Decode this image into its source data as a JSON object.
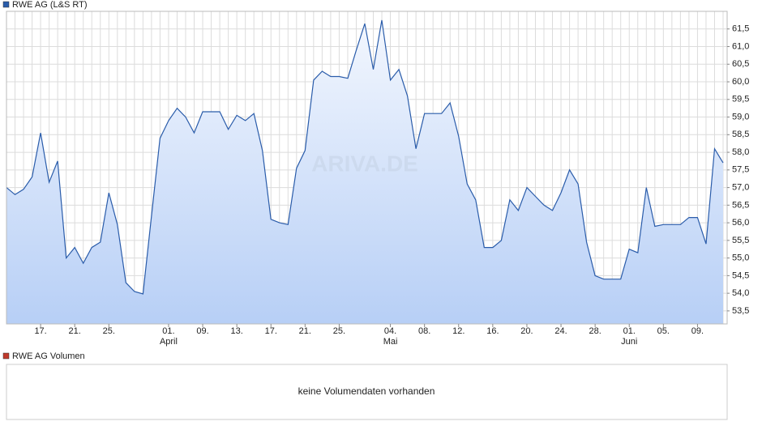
{
  "chart_data": {
    "type": "area",
    "series": [
      {
        "name": "RWE AG (L&S RT)",
        "color": "#2a5caa",
        "values": [
          57.0,
          56.8,
          56.95,
          57.3,
          58.55,
          57.15,
          57.75,
          55.0,
          55.3,
          54.85,
          55.3,
          55.45,
          56.85,
          55.95,
          54.3,
          54.05,
          53.98,
          56.2,
          58.4,
          58.9,
          59.25,
          59.0,
          58.55,
          59.15,
          59.15,
          59.15,
          58.65,
          59.05,
          58.9,
          59.1,
          58.05,
          56.1,
          56.0,
          55.95,
          57.55,
          58.05,
          60.05,
          60.3,
          60.15,
          60.15,
          60.1,
          60.9,
          61.65,
          60.35,
          61.75,
          60.05,
          60.35,
          59.6,
          58.1,
          59.1,
          59.1,
          59.1,
          59.4,
          58.45,
          57.1,
          56.65,
          55.3,
          55.3,
          55.5,
          56.65,
          56.35,
          57.0,
          56.75,
          56.5,
          56.35,
          56.85,
          57.5,
          57.1,
          55.45,
          54.5,
          54.4,
          54.4,
          54.4,
          55.25,
          55.15,
          57.0,
          55.9,
          55.95,
          55.95,
          55.95,
          56.15,
          56.15,
          55.4,
          58.1,
          57.7
        ]
      }
    ],
    "categories": [
      null,
      null,
      null,
      null,
      "17.",
      null,
      null,
      null,
      "21.",
      null,
      null,
      null,
      "25.",
      null,
      null,
      null,
      null,
      null,
      null,
      "01.",
      null,
      null,
      null,
      "09.",
      null,
      null,
      null,
      "13.",
      null,
      null,
      null,
      "17.",
      null,
      null,
      null,
      "21.",
      null,
      null,
      null,
      "25.",
      null,
      null,
      null,
      null,
      null,
      "04.",
      null,
      null,
      null,
      "08.",
      null,
      null,
      null,
      "12.",
      null,
      null,
      null,
      "16.",
      null,
      null,
      null,
      "20.",
      null,
      null,
      null,
      "24.",
      null,
      null,
      null,
      "28.",
      null,
      null,
      null,
      "01.",
      null,
      null,
      null,
      "05.",
      null,
      null,
      null,
      "09.",
      null,
      null,
      null
    ],
    "months": [
      null,
      null,
      null,
      null,
      null,
      null,
      null,
      null,
      null,
      null,
      null,
      null,
      null,
      null,
      null,
      null,
      null,
      null,
      null,
      "April",
      null,
      null,
      null,
      null,
      null,
      null,
      null,
      null,
      null,
      null,
      null,
      null,
      null,
      null,
      null,
      null,
      null,
      null,
      null,
      null,
      null,
      null,
      null,
      null,
      null,
      "Mai",
      null,
      null,
      null,
      null,
      null,
      null,
      null,
      null,
      null,
      null,
      null,
      null,
      null,
      null,
      null,
      null,
      null,
      null,
      null,
      null,
      null,
      null,
      null,
      null,
      null,
      null,
      null,
      "Juni",
      null,
      null,
      null,
      null,
      null,
      null,
      null,
      null,
      null,
      null,
      null
    ],
    "ylim": [
      53.13,
      62.0
    ],
    "yticks": [
      {
        "value": 53.5,
        "label": "53,5"
      },
      {
        "value": 54.0,
        "label": "54,0"
      },
      {
        "value": 54.5,
        "label": "54,5"
      },
      {
        "value": 55.0,
        "label": "55,0"
      },
      {
        "value": 55.5,
        "label": "55,5"
      },
      {
        "value": 56.0,
        "label": "56,0"
      },
      {
        "value": 56.5,
        "label": "56,5"
      },
      {
        "value": 57.0,
        "label": "57,0"
      },
      {
        "value": 57.5,
        "label": "57,5"
      },
      {
        "value": 58.0,
        "label": "58,0"
      },
      {
        "value": 58.5,
        "label": "58,5"
      },
      {
        "value": 59.0,
        "label": "59,0"
      },
      {
        "value": 59.5,
        "label": "59,5"
      },
      {
        "value": 60.0,
        "label": "60,0"
      },
      {
        "value": 60.5,
        "label": "60,5"
      },
      {
        "value": 61.0,
        "label": "61,0"
      },
      {
        "value": 61.5,
        "label": "61,5"
      }
    ],
    "grid": true,
    "watermark": "ARIVA.DE"
  },
  "volume_panel": {
    "legend": "RWE AG Volumen",
    "legend_color": "#c0392b",
    "message": "keine Volumendaten vorhanden"
  }
}
